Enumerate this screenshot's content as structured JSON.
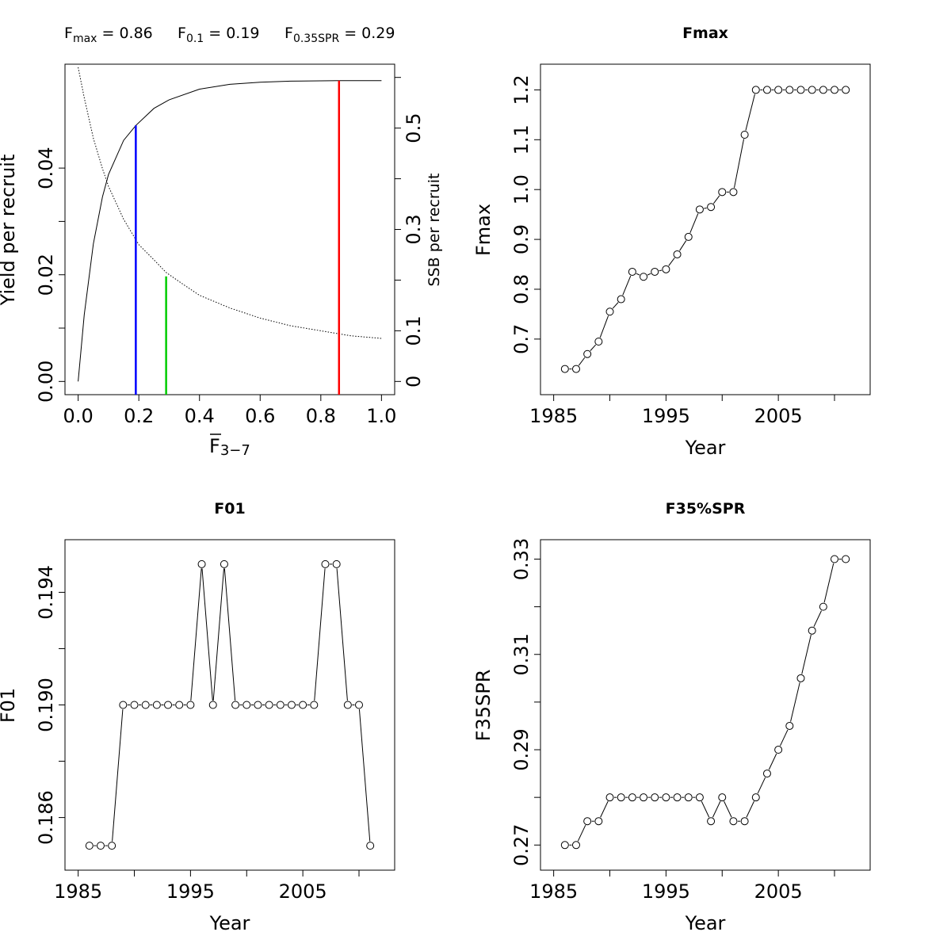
{
  "header": {
    "fmax": {
      "sym": "F",
      "sub": "max",
      "val": " = 0.86"
    },
    "f01": {
      "sym": "F",
      "sub": "0.1",
      "val": " = 0.19"
    },
    "fspr": {
      "sym": "F",
      "sub": "0.35SPR",
      "val": " = 0.29"
    }
  },
  "chart_data": [
    {
      "type": "line",
      "id": "ypr",
      "title": "",
      "xlabel": "F",
      "xlabel_sub": "3−7",
      "ylabel": "Yield per recruit",
      "ylabel_right": "SSB per recruit",
      "xlim": [
        0,
        1
      ],
      "ylim": [
        0,
        0.057
      ],
      "ylim_right": [
        0,
        0.6
      ],
      "x_ticks": [
        "0.0",
        "0.2",
        "0.4",
        "0.6",
        "0.8",
        "1.0"
      ],
      "y_ticks": [
        "0.00",
        "0.02",
        "0.04"
      ],
      "y_right_ticks": [
        "0",
        "0.1",
        "0.3",
        "0.5"
      ],
      "series": [
        {
          "curve": "yield",
          "line_style": "solid",
          "x": [
            0,
            0.02,
            0.05,
            0.08,
            0.1,
            0.15,
            0.19,
            0.25,
            0.3,
            0.4,
            0.5,
            0.6,
            0.7,
            0.86,
            1.0
          ],
          "y": [
            0,
            0.0125,
            0.0258,
            0.0346,
            0.0388,
            0.0452,
            0.048,
            0.0512,
            0.0528,
            0.0548,
            0.0557,
            0.0561,
            0.0563,
            0.0564,
            0.0564
          ]
        },
        {
          "curve": "ssb",
          "line_style": "dotted",
          "x": [
            0,
            0.02,
            0.05,
            0.08,
            0.1,
            0.15,
            0.2,
            0.25,
            0.29,
            0.35,
            0.4,
            0.5,
            0.6,
            0.7,
            0.8,
            0.9,
            1.0
          ],
          "y": [
            0.62,
            0.56,
            0.48,
            0.42,
            0.385,
            0.32,
            0.27,
            0.24,
            0.215,
            0.19,
            0.17,
            0.145,
            0.125,
            0.11,
            0.1,
            0.09,
            0.085
          ]
        }
      ],
      "reference_lines": [
        {
          "x": 0.19,
          "y_top": 0.048,
          "color": "#0000ff"
        },
        {
          "x": 0.29,
          "y_top": 0.0197,
          "color": "#00cc00"
        },
        {
          "x": 0.86,
          "y_top": 0.0564,
          "color": "#ff0000"
        }
      ]
    },
    {
      "type": "line",
      "id": "fmax",
      "title": "Fmax",
      "xlabel": "Year",
      "ylabel": "Fmax",
      "xlim": [
        1985,
        2012
      ],
      "ylim": [
        0.615,
        1.225
      ],
      "x_ticks": [
        "1985",
        "1995",
        "2005"
      ],
      "y_ticks": [
        "0.7",
        "0.8",
        "0.9",
        "1.0",
        "1.1",
        "1.2"
      ],
      "x": [
        1986,
        1987,
        1988,
        1989,
        1990,
        1991,
        1992,
        1993,
        1994,
        1995,
        1996,
        1997,
        1998,
        1999,
        2000,
        2001,
        2002,
        2003,
        2004,
        2005,
        2006,
        2007,
        2008,
        2009,
        2010,
        2011
      ],
      "values": [
        0.64,
        0.64,
        0.67,
        0.695,
        0.755,
        0.78,
        0.835,
        0.825,
        0.835,
        0.84,
        0.87,
        0.905,
        0.96,
        0.965,
        0.995,
        0.995,
        1.11,
        1.2,
        1.2,
        1.2,
        1.2,
        1.2,
        1.2,
        1.2,
        1.2,
        1.2
      ]
    },
    {
      "type": "line",
      "id": "f01",
      "title": "F01",
      "xlabel": "Year",
      "ylabel": "F01",
      "xlim": [
        1985,
        2012
      ],
      "ylim": [
        0.1846,
        0.1954
      ],
      "x_ticks": [
        "1985",
        "1995",
        "2005"
      ],
      "y_ticks": [
        "0.186",
        "0.190",
        "0.194"
      ],
      "x": [
        1986,
        1987,
        1988,
        1989,
        1990,
        1991,
        1992,
        1993,
        1994,
        1995,
        1996,
        1997,
        1998,
        1999,
        2000,
        2001,
        2002,
        2003,
        2004,
        2005,
        2006,
        2007,
        2008,
        2009,
        2010,
        2011
      ],
      "values": [
        0.185,
        0.185,
        0.185,
        0.19,
        0.19,
        0.19,
        0.19,
        0.19,
        0.19,
        0.19,
        0.195,
        0.19,
        0.195,
        0.19,
        0.19,
        0.19,
        0.19,
        0.19,
        0.19,
        0.19,
        0.19,
        0.195,
        0.195,
        0.19,
        0.19,
        0.185
      ]
    },
    {
      "type": "line",
      "id": "f35spr",
      "title": "F35%SPR",
      "xlabel": "Year",
      "ylabel": "F35SPR",
      "xlim": [
        1985,
        2012
      ],
      "ylim": [
        0.2675,
        0.3313
      ],
      "x_ticks": [
        "1985",
        "1995",
        "2005"
      ],
      "y_ticks": [
        "0.27",
        "0.29",
        "0.31",
        "0.33"
      ],
      "x": [
        1986,
        1987,
        1988,
        1989,
        1990,
        1991,
        1992,
        1993,
        1994,
        1995,
        1996,
        1997,
        1998,
        1999,
        2000,
        2001,
        2002,
        2003,
        2004,
        2005,
        2006,
        2007,
        2008,
        2009,
        2010,
        2011
      ],
      "values": [
        0.27,
        0.27,
        0.275,
        0.275,
        0.28,
        0.28,
        0.28,
        0.28,
        0.28,
        0.28,
        0.28,
        0.28,
        0.28,
        0.275,
        0.28,
        0.275,
        0.275,
        0.28,
        0.285,
        0.29,
        0.295,
        0.305,
        0.315,
        0.32,
        0.33,
        0.33
      ]
    }
  ]
}
